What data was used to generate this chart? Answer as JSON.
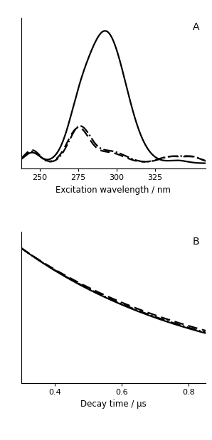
{
  "panel_A_label": "A",
  "panel_B_label": "B",
  "xlabel_A": "Excitation wavelength / nm",
  "xlabel_B": "Decay time / μs",
  "xlim_A": [
    238,
    358
  ],
  "xticks_A": [
    250,
    275,
    300,
    325
  ],
  "xlim_B": [
    0.3,
    0.85
  ],
  "xticks_B": [
    0.4,
    0.6,
    0.8
  ],
  "line_color": "#000000",
  "background_color": "#ffffff",
  "figsize": [
    2.98,
    6.19
  ],
  "dpi": 100
}
